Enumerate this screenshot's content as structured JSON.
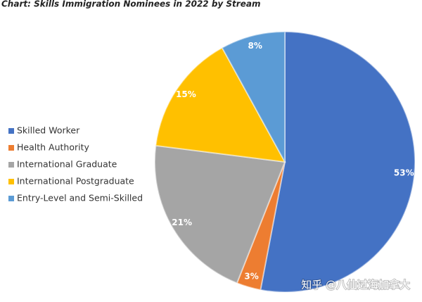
{
  "chart_data": {
    "type": "pie",
    "title": "Chart: Skills Immigration Nominees in 2022 by Stream",
    "categories": [
      "Skilled Worker",
      "Health Authority",
      "International Graduate",
      "International Postgraduate",
      "Entry-Level and Semi-Skilled"
    ],
    "values": [
      53,
      3,
      21,
      15,
      8
    ],
    "value_labels": [
      "53%",
      "3%",
      "21%",
      "15%",
      "8%"
    ],
    "colors": [
      "#4472c4",
      "#ed7d31",
      "#a5a5a5",
      "#ffc000",
      "#5b9bd5"
    ],
    "legend": "left",
    "watermark": "知乎 @八仙过海加拿大"
  }
}
